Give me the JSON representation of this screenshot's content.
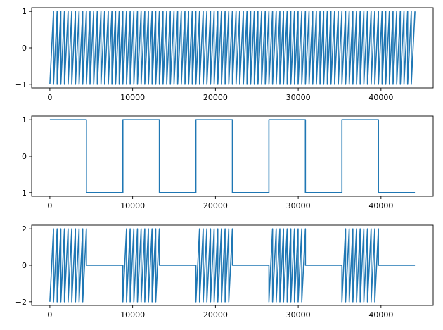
{
  "chart_data": [
    {
      "type": "line",
      "title": "",
      "xlabel": "",
      "ylabel": "",
      "xlim": [
        -2200,
        46300
      ],
      "ylim": [
        -1.1,
        1.1
      ],
      "xticks": [
        0,
        10000,
        20000,
        30000,
        40000
      ],
      "yticks": [
        -1,
        0,
        1
      ],
      "grid": false,
      "series": [
        {
          "color": "#1f77b4",
          "signal": "sawtooth",
          "x_start": 0,
          "x_end": 44100,
          "period": 441,
          "amplitude_min": -1,
          "amplitude_max": 1
        }
      ]
    },
    {
      "type": "line",
      "title": "",
      "xlabel": "",
      "ylabel": "",
      "xlim": [
        -2200,
        46300
      ],
      "ylim": [
        -1.1,
        1.1
      ],
      "xticks": [
        0,
        10000,
        20000,
        30000,
        40000
      ],
      "yticks": [
        -1,
        0,
        1
      ],
      "grid": false,
      "series": [
        {
          "color": "#1f77b4",
          "signal": "square",
          "x_start": 0,
          "x_end": 44100,
          "period": 8820,
          "amplitude_min": -1,
          "amplitude_max": 1
        }
      ]
    },
    {
      "type": "line",
      "title": "",
      "xlabel": "",
      "ylabel": "",
      "xlim": [
        -2200,
        46300
      ],
      "ylim": [
        -2.2,
        2.2
      ],
      "xticks": [
        0,
        10000,
        20000,
        30000,
        40000
      ],
      "yticks": [
        -2,
        0,
        2
      ],
      "grid": false,
      "series": [
        {
          "color": "#1f77b4",
          "signal": "gated-sawtooth",
          "x_start": 0,
          "x_end": 44100,
          "period": 441,
          "gate_period": 8820,
          "amplitude_min": -2,
          "amplitude_max": 2
        }
      ]
    }
  ]
}
